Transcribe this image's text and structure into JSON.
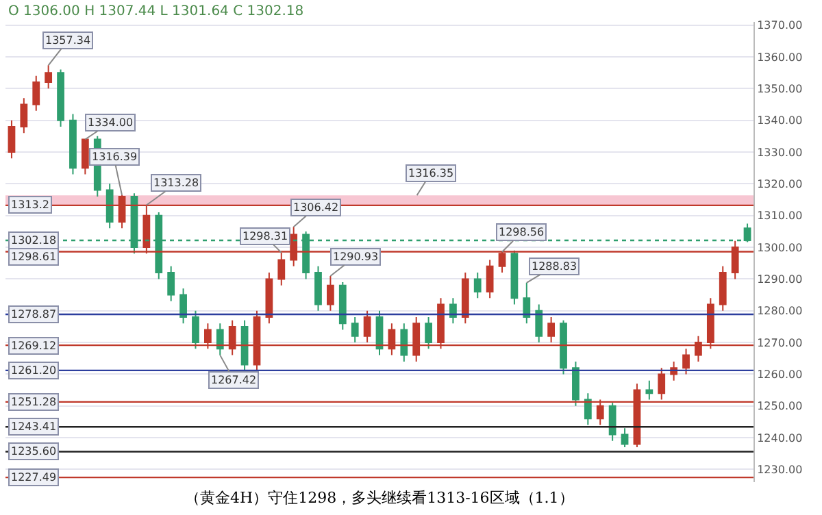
{
  "chart_data": {
    "type": "candlestick",
    "categories": [
      null,
      null,
      null,
      null,
      null,
      null,
      null,
      null,
      null,
      null,
      null,
      null,
      null,
      null,
      null,
      null,
      null,
      null,
      null,
      null,
      null,
      null,
      null,
      null,
      null,
      null,
      null,
      null,
      null,
      null,
      null,
      null,
      null,
      null,
      null,
      null,
      null,
      null,
      null,
      null,
      null,
      null,
      null,
      null,
      null,
      null,
      null,
      null,
      null,
      null,
      null,
      null,
      null,
      null,
      null,
      null,
      null,
      null,
      null,
      null,
      null
    ],
    "ohlc": [
      [
        1330,
        1340,
        1328,
        1338
      ],
      [
        1338,
        1347,
        1336,
        1345
      ],
      [
        1345,
        1354,
        1343,
        1352
      ],
      [
        1352,
        1357.34,
        1350,
        1355
      ],
      [
        1355,
        1356,
        1338,
        1340
      ],
      [
        1340,
        1342,
        1323,
        1325
      ],
      [
        1325,
        1334.0,
        1323,
        1334
      ],
      [
        1334,
        1335,
        1316,
        1318
      ],
      [
        1318,
        1320,
        1306,
        1308
      ],
      [
        1308,
        1316.39,
        1306,
        1316
      ],
      [
        1316,
        1317,
        1298,
        1300
      ],
      [
        1300,
        1313.28,
        1298,
        1310
      ],
      [
        1310,
        1311,
        1290,
        1292
      ],
      [
        1292,
        1294,
        1283,
        1285
      ],
      [
        1285,
        1287,
        1276,
        1278
      ],
      [
        1278,
        1280,
        1268,
        1270
      ],
      [
        1270,
        1276,
        1268,
        1274
      ],
      [
        1274,
        1276,
        1266,
        1268
      ],
      [
        1268,
        1277,
        1266,
        1275
      ],
      [
        1275,
        1277,
        1261,
        1263
      ],
      [
        1263,
        1280,
        1261,
        1278
      ],
      [
        1278,
        1292,
        1276,
        1290
      ],
      [
        1290,
        1298.31,
        1288,
        1296
      ],
      [
        1296,
        1306.42,
        1294,
        1304
      ],
      [
        1304,
        1305,
        1290,
        1292
      ],
      [
        1292,
        1294,
        1280,
        1282
      ],
      [
        1282,
        1290.93,
        1280,
        1288
      ],
      [
        1288,
        1289,
        1274,
        1276
      ],
      [
        1276,
        1278,
        1270,
        1272
      ],
      [
        1272,
        1280,
        1270,
        1278
      ],
      [
        1278,
        1280,
        1266,
        1268
      ],
      [
        1268,
        1276,
        1266,
        1274
      ],
      [
        1274,
        1276,
        1264,
        1266
      ],
      [
        1266,
        1278,
        1264,
        1276
      ],
      [
        1276,
        1278,
        1268,
        1270
      ],
      [
        1270,
        1284,
        1268,
        1282
      ],
      [
        1282,
        1284,
        1276,
        1278
      ],
      [
        1278,
        1292,
        1276,
        1290
      ],
      [
        1290,
        1292,
        1284,
        1286
      ],
      [
        1286,
        1296,
        1284,
        1294
      ],
      [
        1294,
        1298.56,
        1292,
        1298
      ],
      [
        1298,
        1299,
        1282,
        1284
      ],
      [
        1284,
        1288.83,
        1276,
        1278
      ],
      [
        1280,
        1282,
        1270,
        1272
      ],
      [
        1272,
        1278,
        1270,
        1276
      ],
      [
        1276,
        1277,
        1260,
        1262
      ],
      [
        1262,
        1264,
        1250,
        1252
      ],
      [
        1252,
        1254,
        1244,
        1246
      ],
      [
        1246,
        1252,
        1244,
        1250
      ],
      [
        1250,
        1251,
        1239,
        1241
      ],
      [
        1241,
        1243,
        1237,
        1238
      ],
      [
        1238,
        1257,
        1237,
        1255
      ],
      [
        1255,
        1258,
        1252,
        1254
      ],
      [
        1254,
        1262,
        1252,
        1260
      ],
      [
        1260,
        1264,
        1258,
        1262
      ],
      [
        1262,
        1268,
        1260,
        1266
      ],
      [
        1266,
        1272,
        1264,
        1270
      ],
      [
        1270,
        1284,
        1268,
        1282
      ],
      [
        1282,
        1294,
        1280,
        1292
      ],
      [
        1292,
        1302,
        1290,
        1300
      ],
      [
        1306.0,
        1307.44,
        1301.64,
        1302.18
      ]
    ],
    "colors": [
      "#c0392b",
      "#c0392b",
      "#c0392b",
      "#c0392b",
      "#2e9e6e",
      "#2e9e6e",
      "#c0392b",
      "#2e9e6e",
      "#2e9e6e",
      "#c0392b",
      "#2e9e6e",
      "#c0392b",
      "#2e9e6e",
      "#2e9e6e",
      "#2e9e6e",
      "#2e9e6e",
      "#c0392b",
      "#2e9e6e",
      "#c0392b",
      "#2e9e6e",
      "#c0392b",
      "#c0392b",
      "#c0392b",
      "#c0392b",
      "#2e9e6e",
      "#2e9e6e",
      "#c0392b",
      "#2e9e6e",
      "#2e9e6e",
      "#c0392b",
      "#2e9e6e",
      "#c0392b",
      "#2e9e6e",
      "#c0392b",
      "#2e9e6e",
      "#c0392b",
      "#2e9e6e",
      "#c0392b",
      "#2e9e6e",
      "#c0392b",
      "#c0392b",
      "#2e9e6e",
      "#2e9e6e",
      "#2e9e6e",
      "#c0392b",
      "#2e9e6e",
      "#2e9e6e",
      "#2e9e6e",
      "#c0392b",
      "#2e9e6e",
      "#2e9e6e",
      "#c0392b",
      "#2e9e6e",
      "#c0392b",
      "#c0392b",
      "#c0392b",
      "#c0392b",
      "#c0392b",
      "#c0392b",
      "#c0392b",
      "#2e9e6e"
    ],
    "ylim": [
      1226,
      1371
    ],
    "yticks": [
      {
        "value": 1230,
        "label": "1230.00"
      },
      {
        "value": 1240,
        "label": "1240.00"
      },
      {
        "value": 1250,
        "label": "1250.00"
      },
      {
        "value": 1260,
        "label": "1260.00"
      },
      {
        "value": 1270,
        "label": "1270.00"
      },
      {
        "value": 1280,
        "label": "1280.00"
      },
      {
        "value": 1290,
        "label": "1290.00"
      },
      {
        "value": 1300,
        "label": "1300.00"
      },
      {
        "value": 1310,
        "label": "1310.00"
      },
      {
        "value": 1320,
        "label": "1320.00"
      },
      {
        "value": 1330,
        "label": "1330.00"
      },
      {
        "value": 1340,
        "label": "1340.00"
      },
      {
        "value": 1350,
        "label": "1350.00"
      },
      {
        "value": 1360,
        "label": "1360.00"
      },
      {
        "value": 1370,
        "label": "1370.00"
      }
    ],
    "tick_labels": "y",
    "grid": "y",
    "bands": [
      {
        "axis": "y",
        "from": 1313.2,
        "to": 1316.35,
        "label": "1316.35",
        "color": "#f2a0b4"
      }
    ],
    "ref_lines": [
      {
        "axis": "y",
        "value": 1313.2,
        "label": "1313.2",
        "color": "#c0392b"
      },
      {
        "axis": "y",
        "value": 1302.18,
        "label": "1302.18",
        "color": "#2e9e6e",
        "line_style": "dotted"
      },
      {
        "axis": "y",
        "value": 1298.61,
        "label": "1298.61",
        "color": "#c0392b"
      },
      {
        "axis": "y",
        "value": 1278.87,
        "label": "1278.87",
        "color": "#2c3e9e"
      },
      {
        "axis": "y",
        "value": 1269.12,
        "label": "1269.12",
        "color": "#c0392b"
      },
      {
        "axis": "y",
        "value": 1261.2,
        "label": "1261.20",
        "color": "#2c3e9e"
      },
      {
        "axis": "y",
        "value": 1251.28,
        "label": "1251.28",
        "color": "#c0392b"
      },
      {
        "axis": "y",
        "value": 1243.41,
        "label": "1243.41",
        "color": "#222222"
      },
      {
        "axis": "y",
        "value": 1235.6,
        "label": "1235.60",
        "color": "#222222"
      },
      {
        "axis": "y",
        "value": 1227.49,
        "label": "1227.49",
        "color": "#c0392b"
      }
    ],
    "annotations": [
      "O 1306.00 H 1307.44 L 1301.64 C 1302.18",
      "（黄金4H）守住1298，多头继续看1313-16区域（1.1）",
      "1357.34",
      "1334.00",
      "1316.39",
      "1313.28",
      "1306.42",
      "1298.31",
      "1290.93",
      "1298.56",
      "1288.83",
      "1267.42"
    ]
  }
}
